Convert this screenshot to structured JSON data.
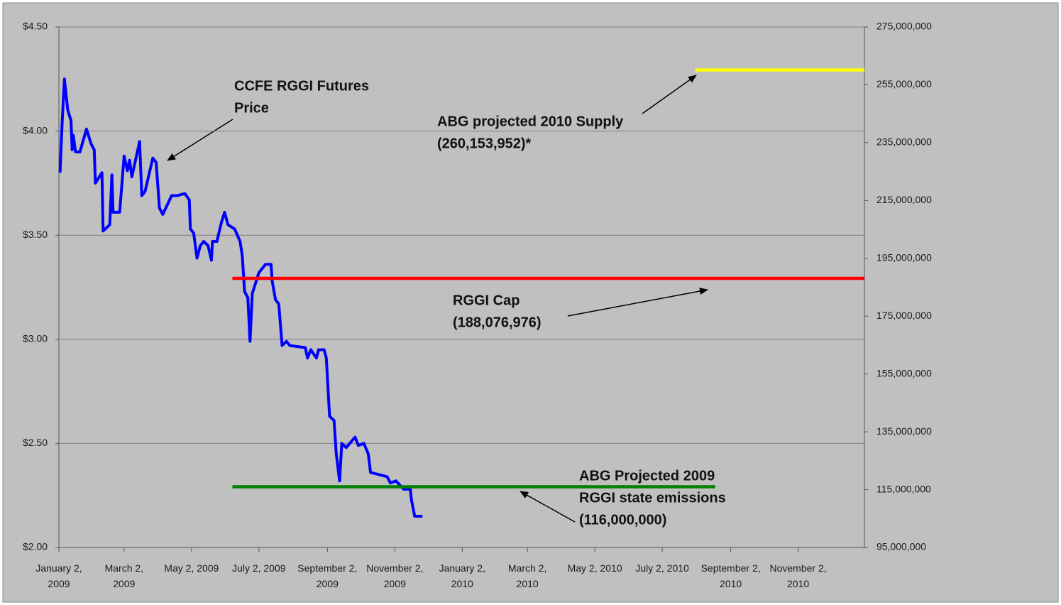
{
  "chart_data": {
    "type": "line",
    "xlim": [
      "2009-01-02",
      "2011-01-01"
    ],
    "xticks": [
      {
        "value": "2009-01-02",
        "label": "January 2, 2009"
      },
      {
        "value": "2009-03-02",
        "label": "March 2, 2009"
      },
      {
        "value": "2009-05-02",
        "label": "May 2, 2009"
      },
      {
        "value": "2009-07-02",
        "label": "July 2, 2009"
      },
      {
        "value": "2009-09-02",
        "label": "September 2, 2009"
      },
      {
        "value": "2009-11-02",
        "label": "November 2, 2009"
      },
      {
        "value": "2010-01-02",
        "label": "January 2, 2010"
      },
      {
        "value": "2010-03-02",
        "label": "March 2, 2010"
      },
      {
        "value": "2010-05-02",
        "label": "May 2, 2010"
      },
      {
        "value": "2010-07-02",
        "label": "July 2, 2010"
      },
      {
        "value": "2010-09-02",
        "label": "September 2, 2010"
      },
      {
        "value": "2010-11-02",
        "label": "November 2, 2010"
      }
    ],
    "ylim": [
      2.0,
      4.5
    ],
    "yticks": [
      {
        "value": 2.0,
        "label": "$2.00"
      },
      {
        "value": 2.5,
        "label": "$2.50"
      },
      {
        "value": 3.0,
        "label": "$3.00"
      },
      {
        "value": 3.5,
        "label": "$3.50"
      },
      {
        "value": 4.0,
        "label": "$4.00"
      },
      {
        "value": 4.5,
        "label": "$4.50"
      }
    ],
    "y2lim": [
      95000000,
      275000000
    ],
    "y2ticks": [
      {
        "value": 95000000,
        "label": "95,000,000"
      },
      {
        "value": 115000000,
        "label": "115,000,000"
      },
      {
        "value": 135000000,
        "label": "135,000,000"
      },
      {
        "value": 155000000,
        "label": "155,000,000"
      },
      {
        "value": 175000000,
        "label": "175,000,000"
      },
      {
        "value": 195000000,
        "label": "195,000,000"
      },
      {
        "value": 215000000,
        "label": "215,000,000"
      },
      {
        "value": 235000000,
        "label": "235,000,000"
      },
      {
        "value": 255000000,
        "label": "255,000,000"
      },
      {
        "value": 275000000,
        "label": "275,000,000"
      }
    ],
    "grid": true,
    "series": [
      {
        "color": "#0000ff",
        "axis": "y",
        "x": [
          "2009-01-03",
          "2009-01-05",
          "2009-01-07",
          "2009-01-10",
          "2009-01-13",
          "2009-01-14",
          "2009-01-15",
          "2009-01-17",
          "2009-01-21",
          "2009-01-27",
          "2009-01-31",
          "2009-02-03",
          "2009-02-04",
          "2009-02-10",
          "2009-02-11",
          "2009-02-17",
          "2009-02-19",
          "2009-02-20",
          "2009-02-26",
          "2009-03-02",
          "2009-03-05",
          "2009-03-07",
          "2009-03-09",
          "2009-03-16",
          "2009-03-18",
          "2009-03-21",
          "2009-03-28",
          "2009-03-31",
          "2009-04-03",
          "2009-04-06",
          "2009-04-14",
          "2009-04-19",
          "2009-04-26",
          "2009-04-30",
          "2009-05-01",
          "2009-05-04",
          "2009-05-07",
          "2009-05-10",
          "2009-05-13",
          "2009-05-17",
          "2009-05-20",
          "2009-05-21",
          "2009-05-25",
          "2009-05-29",
          "2009-06-01",
          "2009-06-04",
          "2009-06-10",
          "2009-06-15",
          "2009-06-17",
          "2009-06-19",
          "2009-06-22",
          "2009-06-24",
          "2009-06-26",
          "2009-07-02",
          "2009-07-08",
          "2009-07-13",
          "2009-07-14",
          "2009-07-17",
          "2009-07-20",
          "2009-07-23",
          "2009-07-27",
          "2009-07-30",
          "2009-08-13",
          "2009-08-15",
          "2009-08-18",
          "2009-08-23",
          "2009-08-25",
          "2009-08-30",
          "2009-09-01",
          "2009-09-04",
          "2009-09-08",
          "2009-09-10",
          "2009-09-13",
          "2009-09-15",
          "2009-09-19",
          "2009-09-27",
          "2009-09-30",
          "2009-10-05",
          "2009-10-09",
          "2009-10-11",
          "2009-10-19",
          "2009-10-26",
          "2009-10-29",
          "2009-11-03",
          "2009-11-10",
          "2009-11-16",
          "2009-11-17",
          "2009-11-20",
          "2009-11-27"
        ],
        "values": [
          3.8,
          4.05,
          4.25,
          4.1,
          4.05,
          3.91,
          3.98,
          3.9,
          3.9,
          4.01,
          3.94,
          3.91,
          3.75,
          3.8,
          3.52,
          3.55,
          3.79,
          3.61,
          3.61,
          3.88,
          3.81,
          3.86,
          3.78,
          3.95,
          3.69,
          3.71,
          3.87,
          3.85,
          3.63,
          3.6,
          3.69,
          3.69,
          3.7,
          3.67,
          3.53,
          3.51,
          3.39,
          3.45,
          3.47,
          3.45,
          3.38,
          3.47,
          3.47,
          3.56,
          3.61,
          3.55,
          3.53,
          3.47,
          3.4,
          3.23,
          3.2,
          2.99,
          3.22,
          3.32,
          3.36,
          3.36,
          3.28,
          3.19,
          3.17,
          2.97,
          2.99,
          2.97,
          2.96,
          2.91,
          2.95,
          2.91,
          2.95,
          2.95,
          2.91,
          2.63,
          2.61,
          2.45,
          2.32,
          2.5,
          2.48,
          2.53,
          2.49,
          2.5,
          2.45,
          2.36,
          2.35,
          2.34,
          2.31,
          2.32,
          2.28,
          2.28,
          2.23,
          2.15,
          2.15
        ]
      },
      {
        "color": "#ff0000",
        "axis": "y2",
        "x": [
          "2009-06-08",
          "2011-01-01"
        ],
        "values": [
          188076976,
          188076976
        ]
      },
      {
        "color": "#008000",
        "axis": "y2",
        "x": [
          "2009-06-08",
          "2010-08-19"
        ],
        "values": [
          116000000,
          116000000
        ]
      },
      {
        "color": "#ffff00",
        "axis": "y2",
        "x": [
          "2010-08-01",
          "2011-01-01"
        ],
        "values": [
          260153952,
          260153952
        ]
      }
    ],
    "annotations": [
      [
        "CCFE RGGI Futures",
        "Price"
      ],
      [
        "ABG projected 2010 Supply",
        "(260,153,952)*"
      ],
      [
        "RGGI Cap",
        "(188,076,976)"
      ],
      [
        "ABG Projected 2009",
        "RGGI state emissions",
        "(116,000,000)"
      ]
    ]
  }
}
